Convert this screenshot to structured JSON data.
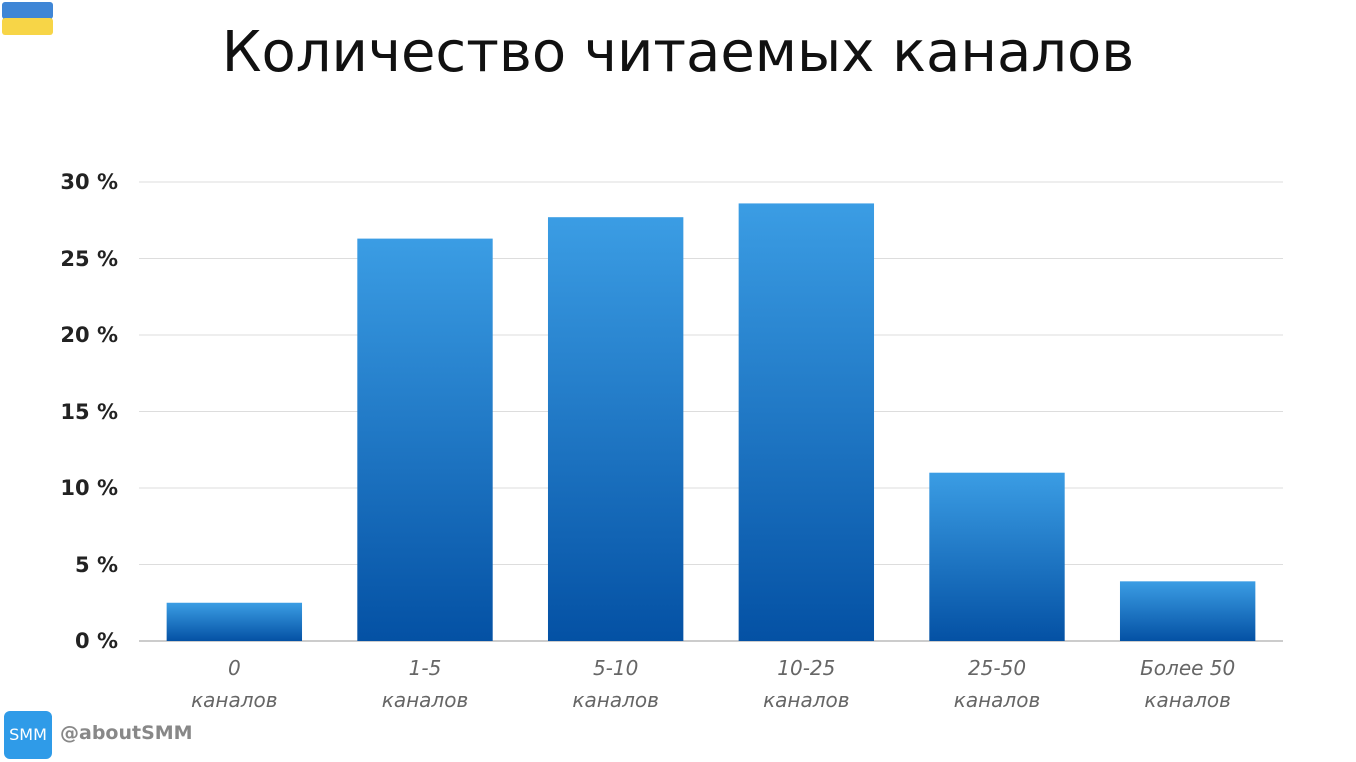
{
  "chart_data": {
    "type": "bar",
    "title": "Количество читаемых каналов",
    "categories": [
      "0\nканалов",
      "1-5\nканалов",
      "5-10\nканалов",
      "10-25\nканалов",
      "25-50\nканалов",
      "Более 50\nканалов"
    ],
    "values": [
      2.5,
      26.3,
      27.7,
      28.6,
      11.0,
      3.9
    ],
    "gradient": [
      "#3b9de4",
      "#0451a4"
    ],
    "ylim": [
      0,
      30
    ],
    "yticks": [
      {
        "value": 0,
        "label": "0 %"
      },
      {
        "value": 5,
        "label": "5 %"
      },
      {
        "value": 10,
        "label": "10 %"
      },
      {
        "value": 15,
        "label": "15 %"
      },
      {
        "value": 20,
        "label": "20 %"
      },
      {
        "value": 25,
        "label": "25 %"
      },
      {
        "value": 30,
        "label": "30 %"
      }
    ],
    "grid": true
  },
  "branding": {
    "logo": "SMM",
    "handle": "@aboutSMM"
  }
}
